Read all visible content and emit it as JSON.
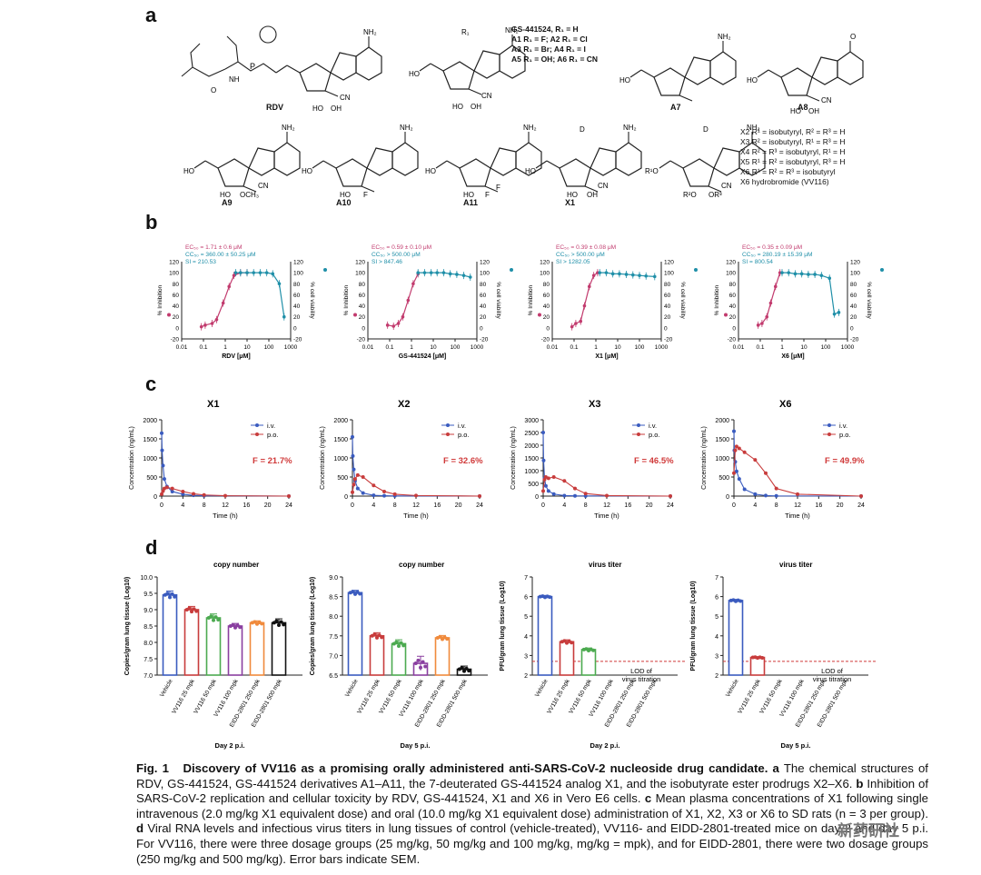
{
  "panel_labels": {
    "a": "a",
    "b": "b",
    "c": "c",
    "d": "d"
  },
  "structures": {
    "row1": [
      {
        "id": "rdv",
        "label": "RDV"
      },
      {
        "id": "gs",
        "label": "GS-441524, R₁ = H",
        "sub": [
          "A1 R₁ = F;  A2 R₁ = Cl",
          "A3 R₁ = Br;  A4 R₁ = I",
          "A5 R₁ = OH; A6 R₁ = CN"
        ]
      },
      {
        "id": "a7",
        "label": "A7"
      },
      {
        "id": "a8",
        "label": "A8"
      }
    ],
    "row2": [
      {
        "id": "a9",
        "label": "A9"
      },
      {
        "id": "a10",
        "label": "A10"
      },
      {
        "id": "a11",
        "label": "A11"
      },
      {
        "id": "x1",
        "label": "X1"
      },
      {
        "id": "xprod",
        "label": ""
      }
    ],
    "prodrug_list": [
      "X2 R¹ = isobutyryl, R² = R³ = H",
      "X3 R² = isobutyryl, R¹ = R³ = H",
      "X4 R² = R³ = isobutyryl, R¹ = H",
      "X5 R¹ = R² = isobutyryl, R³ = H",
      "X6 R¹ = R² = R³ = isobutyryl",
      "X6 hydrobromide (VV116)"
    ]
  },
  "chart_data": [
    {
      "panel": "b",
      "type": "line",
      "xlabel": "RDV [μM]",
      "ylabel_left": "% Inhibition",
      "ylabel_right": "% cell viability",
      "xticks": [
        "0.01",
        "0.1",
        "1",
        "10",
        "100",
        "1000"
      ],
      "ylim": [
        -20,
        120
      ],
      "yticks": [
        "-20",
        "0",
        "20",
        "40",
        "60",
        "80",
        "100",
        "120"
      ],
      "annotations": [
        "EC₅₀ = 1.71 ± 0.6 μM",
        "CC₅₀ = 360.00 ± 50.25 μM",
        "SI = 210.53"
      ],
      "series": [
        {
          "name": "inhibition",
          "color": "#c23b6e",
          "x": [
            0.08,
            0.12,
            0.25,
            0.4,
            0.8,
            1.5,
            2.5,
            5,
            10
          ],
          "y": [
            2,
            5,
            8,
            15,
            45,
            75,
            95,
            100,
            100
          ]
        },
        {
          "name": "viability",
          "color": "#1f8fa8",
          "x": [
            3,
            5,
            10,
            20,
            40,
            80,
            150,
            300,
            500
          ],
          "y": [
            100,
            100,
            100,
            100,
            100,
            100,
            98,
            80,
            20
          ]
        }
      ]
    },
    {
      "panel": "b",
      "type": "line",
      "xlabel": "GS-441524 [μM]",
      "ylabel_left": "% Inhibition",
      "ylabel_right": "% cell viability",
      "xticks": [
        "0.01",
        "0.1",
        "1",
        "10",
        "100",
        "1000"
      ],
      "ylim": [
        -20,
        120
      ],
      "yticks": [
        "-20",
        "0",
        "20",
        "40",
        "60",
        "80",
        "100",
        "120"
      ],
      "annotations": [
        "EC₅₀ = 0.59 ± 0.10 μM",
        "CC₅₀ > 500.00 μM",
        "SI > 847.46"
      ],
      "series": [
        {
          "name": "inhibition",
          "color": "#c23b6e",
          "x": [
            0.08,
            0.15,
            0.25,
            0.4,
            0.7,
            1.2,
            2
          ],
          "y": [
            5,
            3,
            8,
            20,
            50,
            80,
            98
          ]
        },
        {
          "name": "viability",
          "color": "#1f8fa8",
          "x": [
            2,
            4,
            8,
            15,
            30,
            60,
            120,
            250,
            500
          ],
          "y": [
            100,
            100,
            100,
            100,
            100,
            98,
            97,
            95,
            92
          ]
        }
      ]
    },
    {
      "panel": "b",
      "type": "line",
      "xlabel": "X1 [μM]",
      "ylabel_left": "% Inhibition",
      "ylabel_right": "% cell viability",
      "xticks": [
        "0.01",
        "0.1",
        "1",
        "10",
        "100",
        "1000"
      ],
      "ylim": [
        -20,
        120
      ],
      "yticks": [
        "-20",
        "0",
        "20",
        "40",
        "60",
        "80",
        "100",
        "120"
      ],
      "annotations": [
        "EC₅₀ = 0.39 ± 0.08 μM",
        "CC₅₀ > 500.00 μM",
        "SI > 1282.05"
      ],
      "series": [
        {
          "name": "inhibition",
          "color": "#c23b6e",
          "x": [
            0.08,
            0.12,
            0.2,
            0.3,
            0.5,
            0.8,
            1.2
          ],
          "y": [
            2,
            8,
            12,
            40,
            75,
            95,
            100
          ]
        },
        {
          "name": "viability",
          "color": "#1f8fa8",
          "x": [
            1.5,
            3,
            6,
            12,
            25,
            50,
            100,
            200,
            500
          ],
          "y": [
            100,
            100,
            98,
            98,
            97,
            96,
            95,
            94,
            93
          ]
        }
      ]
    },
    {
      "panel": "b",
      "type": "line",
      "xlabel": "X6 [μM]",
      "ylabel_left": "% Inhibition",
      "ylabel_right": "% cell viability",
      "xticks": [
        "0.01",
        "0.1",
        "1",
        "10",
        "100",
        "1000"
      ],
      "ylim": [
        -20,
        120
      ],
      "yticks": [
        "-20",
        "0",
        "20",
        "40",
        "60",
        "80",
        "100",
        "120"
      ],
      "annotations": [
        "EC₅₀ = 0.35 ± 0.09 μM",
        "CC₅₀ = 280.19 ± 15.39 μM",
        "SI = 800.54"
      ],
      "series": [
        {
          "name": "inhibition",
          "color": "#c23b6e",
          "x": [
            0.08,
            0.12,
            0.2,
            0.3,
            0.5,
            0.8
          ],
          "y": [
            5,
            8,
            20,
            45,
            75,
            100
          ]
        },
        {
          "name": "viability",
          "color": "#1f8fa8",
          "x": [
            1,
            2,
            4,
            8,
            16,
            32,
            64,
            150,
            250,
            400
          ],
          "y": [
            100,
            100,
            98,
            98,
            97,
            97,
            95,
            90,
            25,
            28
          ]
        }
      ]
    },
    {
      "panel": "c",
      "type": "line",
      "title": "X1",
      "xlabel": "Time (h)",
      "ylabel": "Concentration (ng/mL)",
      "xticks": [
        "0",
        "4",
        "8",
        "12",
        "16",
        "20",
        "24"
      ],
      "yticks": [
        "0",
        "500",
        "1000",
        "1500",
        "2000"
      ],
      "ylim": [
        0,
        2000
      ],
      "F": "F = 21.7%",
      "series": [
        {
          "name": "i.v.",
          "color": "#3a5bbf",
          "x": [
            0,
            0.08,
            0.25,
            0.5,
            1,
            2,
            4,
            6,
            8,
            24
          ],
          "y": [
            1650,
            1200,
            800,
            450,
            250,
            120,
            50,
            20,
            10,
            0
          ]
        },
        {
          "name": "p.o.",
          "color": "#c83c3c",
          "x": [
            0,
            0.25,
            0.5,
            1,
            2,
            4,
            6,
            8,
            12,
            24
          ],
          "y": [
            50,
            130,
            200,
            230,
            200,
            120,
            60,
            30,
            10,
            0
          ]
        }
      ]
    },
    {
      "panel": "c",
      "type": "line",
      "title": "X2",
      "xlabel": "Time (h)",
      "ylabel": "Concentration (ng/mL)",
      "xticks": [
        "0",
        "4",
        "8",
        "12",
        "16",
        "20",
        "24"
      ],
      "yticks": [
        "0",
        "500",
        "1000",
        "1500",
        "2000"
      ],
      "ylim": [
        0,
        2000
      ],
      "F": "F = 32.6%",
      "series": [
        {
          "name": "i.v.",
          "color": "#3a5bbf",
          "x": [
            0,
            0.08,
            0.25,
            0.5,
            1,
            2,
            4,
            6,
            8,
            24
          ],
          "y": [
            1550,
            1050,
            700,
            400,
            200,
            80,
            20,
            10,
            5,
            0
          ]
        },
        {
          "name": "p.o.",
          "color": "#c83c3c",
          "x": [
            0,
            0.25,
            0.5,
            1,
            2,
            4,
            6,
            8,
            12,
            24
          ],
          "y": [
            100,
            300,
            450,
            550,
            500,
            280,
            120,
            50,
            15,
            0
          ]
        }
      ]
    },
    {
      "panel": "c",
      "type": "line",
      "title": "X3",
      "xlabel": "Time (h)",
      "ylabel": "Concentration (ng/mL)",
      "xticks": [
        "0",
        "4",
        "8",
        "12",
        "16",
        "20",
        "24"
      ],
      "yticks": [
        "0",
        "500",
        "1000",
        "1500",
        "2000",
        "2500",
        "3000"
      ],
      "ylim": [
        0,
        3000
      ],
      "F": "F = 46.5%",
      "series": [
        {
          "name": "i.v.",
          "color": "#3a5bbf",
          "x": [
            0,
            0.08,
            0.25,
            0.5,
            1,
            2,
            4,
            6,
            8,
            24
          ],
          "y": [
            2500,
            1400,
            700,
            400,
            200,
            80,
            20,
            10,
            5,
            0
          ]
        },
        {
          "name": "p.o.",
          "color": "#c83c3c",
          "x": [
            0,
            0.25,
            0.5,
            1,
            2,
            4,
            6,
            8,
            12,
            24
          ],
          "y": [
            200,
            650,
            750,
            700,
            750,
            600,
            300,
            100,
            20,
            0
          ]
        }
      ]
    },
    {
      "panel": "c",
      "type": "line",
      "title": "X6",
      "xlabel": "Time (h)",
      "ylabel": "Concentration (ng/mL)",
      "xticks": [
        "0",
        "4",
        "8",
        "12",
        "16",
        "20",
        "24"
      ],
      "yticks": [
        "0",
        "500",
        "1000",
        "1500",
        "2000"
      ],
      "ylim": [
        0,
        2000
      ],
      "F": "F = 49.9%",
      "series": [
        {
          "name": "i.v.",
          "color": "#3a5bbf",
          "x": [
            0,
            0.08,
            0.25,
            0.5,
            1,
            2,
            4,
            6,
            8,
            24
          ],
          "y": [
            1700,
            1200,
            900,
            650,
            450,
            180,
            50,
            15,
            5,
            0
          ]
        },
        {
          "name": "p.o.",
          "color": "#c83c3c",
          "x": [
            0,
            0.25,
            0.5,
            1,
            2,
            4,
            6,
            8,
            12,
            24
          ],
          "y": [
            600,
            1200,
            1300,
            1250,
            1150,
            950,
            600,
            200,
            50,
            0
          ]
        }
      ]
    },
    {
      "panel": "d",
      "type": "bar",
      "title": "copy number",
      "ylabel": "Copies/gram lung tissue (Log10)",
      "footer": "Day 2 p.i.",
      "yticks": [
        "7.0",
        "7.5",
        "8.0",
        "8.5",
        "9.0",
        "9.5",
        "10.0"
      ],
      "ylim": [
        7.0,
        10.0
      ],
      "categories": [
        "Vehicle",
        "VV116 25 mpk",
        "VV116 50 mpk",
        "VV116 100 mpk",
        "EIDD-2801 250 mpk",
        "EIDD-2801 500 mpk"
      ],
      "values": [
        9.45,
        9.0,
        8.75,
        8.5,
        8.6,
        8.6
      ],
      "errors": [
        0.12,
        0.1,
        0.12,
        0.08,
        0.06,
        0.12
      ],
      "colors": [
        "#3a5bbf",
        "#c83c3c",
        "#4caa50",
        "#8a3fa0",
        "#f08a3c",
        "#111111"
      ]
    },
    {
      "panel": "d",
      "type": "bar",
      "title": "copy number",
      "ylabel": "Copies/gram lung tissue (Log10)",
      "footer": "Day 5 p.i.",
      "yticks": [
        "6.5",
        "7.0",
        "7.5",
        "8.0",
        "8.5",
        "9.0"
      ],
      "ylim": [
        6.5,
        9.0
      ],
      "categories": [
        "Vehicle",
        "VV116 25 mpk",
        "VV116 50 mpk",
        "VV116 100 mpk",
        "EIDD-2801 250 mpk",
        "EIDD-2801 500 mpk"
      ],
      "values": [
        8.6,
        7.5,
        7.3,
        6.8,
        7.45,
        6.65
      ],
      "errors": [
        0.06,
        0.08,
        0.1,
        0.18,
        0.06,
        0.08
      ],
      "colors": [
        "#3a5bbf",
        "#c83c3c",
        "#4caa50",
        "#8a3fa0",
        "#f08a3c",
        "#111111"
      ]
    },
    {
      "panel": "d",
      "type": "bar",
      "title": "virus titer",
      "ylabel": "PFU/gram lung tissue (Log10)",
      "footer": "Day 2 p.i.",
      "yticks": [
        "2",
        "3",
        "4",
        "5",
        "6",
        "7"
      ],
      "ylim": [
        2,
        7
      ],
      "categories": [
        "Vehicle",
        "VV116 25 mpk",
        "VV116 50 mpk",
        "VV116 100 mpk",
        "EIDD-2801 250 mpk",
        "EIDD-2801 500 mpk"
      ],
      "values": [
        6.0,
        3.7,
        3.3,
        null,
        null,
        null
      ],
      "errors": [
        0.06,
        0.1,
        0.08,
        0,
        0,
        0
      ],
      "colors": [
        "#3a5bbf",
        "#c83c3c",
        "#4caa50",
        "#8a3fa0",
        "#f08a3c",
        "#111111"
      ],
      "lod": 2.7,
      "lod_label": [
        "LOD of",
        "virus titration"
      ]
    },
    {
      "panel": "d",
      "type": "bar",
      "title": "virus titer",
      "ylabel": "PFU/gram lung tissue (Log10)",
      "footer": "Day 5 p.i.",
      "yticks": [
        "2",
        "3",
        "4",
        "5",
        "6",
        "7"
      ],
      "ylim": [
        2,
        7
      ],
      "categories": [
        "Vehicle",
        "VV116 25 mpk",
        "VV116 50 mpk",
        "VV116 100 mpk",
        "EIDD-2801 250 mpk",
        "EIDD-2801 500 mpk"
      ],
      "values": [
        5.8,
        2.9,
        null,
        null,
        null,
        null
      ],
      "errors": [
        0.06,
        0.04,
        0,
        0,
        0,
        0
      ],
      "colors": [
        "#3a5bbf",
        "#c83c3c",
        "#4caa50",
        "#8a3fa0",
        "#f08a3c",
        "#111111"
      ],
      "lod": 2.7,
      "lod_label": [
        "LOD of",
        "virus titration"
      ]
    }
  ],
  "legend_c": {
    "iv": "i.v.",
    "po": "p.o."
  },
  "caption": {
    "lead": "Fig. 1",
    "title": "Discovery of VV116 as a promising orally administered anti-SARS-CoV-2 nucleoside drug candidate.",
    "a_label": "a",
    "a_text": "The chemical structures of RDV, GS-441524, GS-441524 derivatives A1–A11, the 7-deuterated GS-441524 analog X1, and the isobutyrate ester prodrugs X2–X6.",
    "b_label": "b",
    "b_text": "Inhibition of SARS-CoV-2 replication and cellular toxicity by RDV, GS-441524, X1 and X6 in Vero E6 cells.",
    "c_label": "c",
    "c_text": "Mean plasma concentrations of X1 following single intravenous (2.0 mg/kg X1 equivalent dose) and oral (10.0 mg/kg X1 equivalent dose) administration of X1, X2, X3 or X6 to SD rats (n = 3 per group).",
    "d_label": "d",
    "d_text": "Viral RNA levels and infectious virus titers in lung tissues of control (vehicle-treated), VV116- and EIDD-2801-treated mice on day 2 and day 5 p.i. For VV116, there were three dosage groups (25 mg/kg, 50 mg/kg and 100 mg/kg, mg/kg = mpk), and for EIDD-2801, there were two dosage groups (250 mg/kg and 500 mg/kg). Error bars indicate SEM."
  },
  "watermark": "新药研社"
}
